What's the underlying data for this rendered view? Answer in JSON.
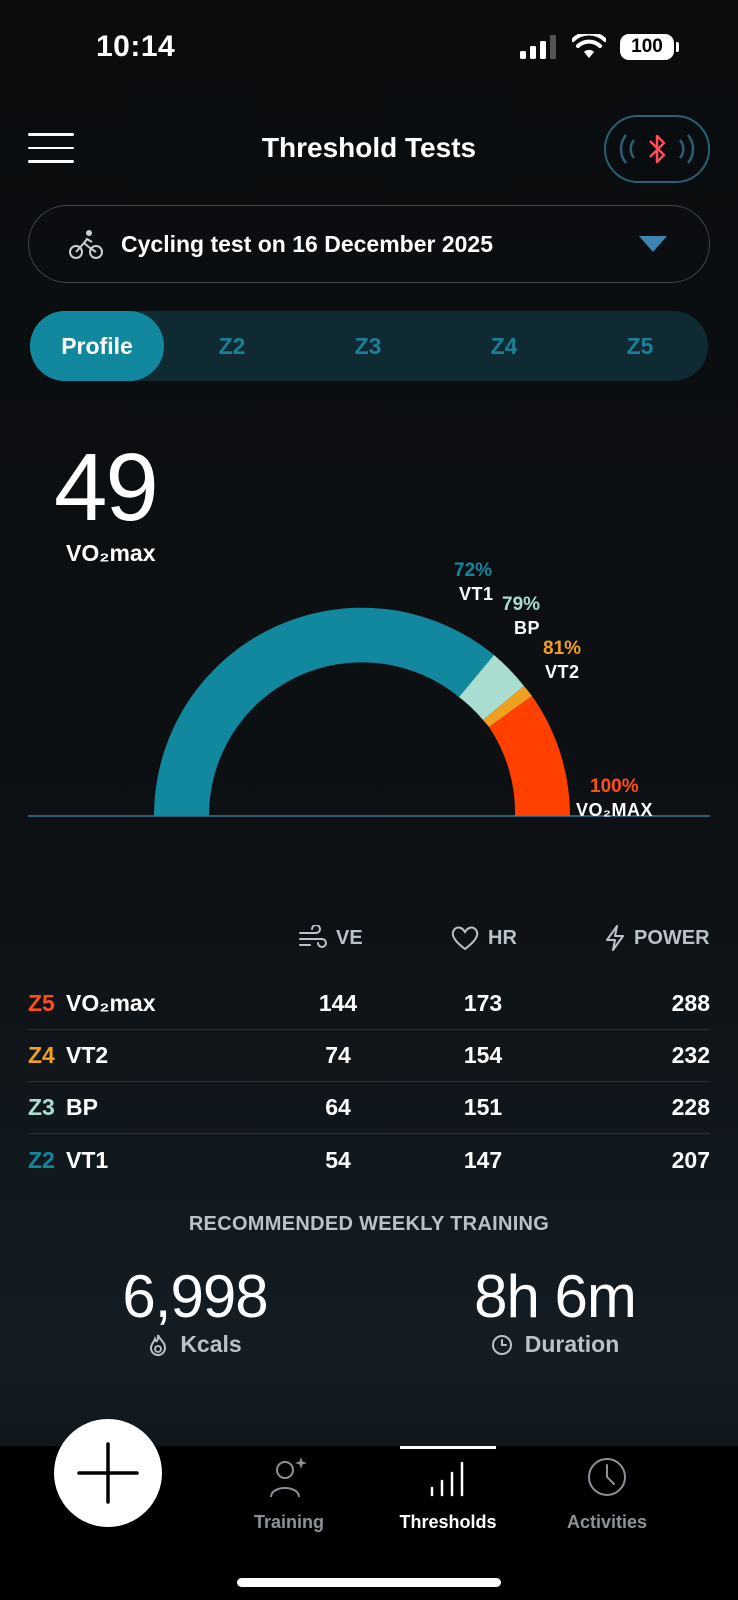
{
  "status": {
    "time": "10:14",
    "battery": "100"
  },
  "header": {
    "title": "Threshold Tests"
  },
  "test_selector": {
    "label": "Cycling test on 16 December 2025"
  },
  "tabs": [
    {
      "label": "Profile",
      "active": true
    },
    {
      "label": "Z2"
    },
    {
      "label": "Z3"
    },
    {
      "label": "Z4"
    },
    {
      "label": "Z5"
    }
  ],
  "vo2max": {
    "value": "49",
    "label": "VO₂max"
  },
  "gauge": {
    "markers": [
      {
        "pct": "72%",
        "name": "VT1",
        "color": "#11889e"
      },
      {
        "pct": "79%",
        "name": "BP",
        "color": "#a8ddd0"
      },
      {
        "pct": "81%",
        "name": "VT2",
        "color": "#f0a020"
      },
      {
        "pct": "100%",
        "name": "VO₂MAX",
        "color": "#ff4d1a"
      }
    ]
  },
  "table": {
    "headers": {
      "ve": "VE",
      "hr": "HR",
      "power": "POWER"
    },
    "rows": [
      {
        "zone": "Z5",
        "zone_color": "#ff4d1a",
        "name": "VO₂max",
        "ve": "144",
        "hr": "173",
        "power": "288"
      },
      {
        "zone": "Z4",
        "zone_color": "#f0a020",
        "name": "VT2",
        "ve": "74",
        "hr": "154",
        "power": "232"
      },
      {
        "zone": "Z3",
        "zone_color": "#a8ddd0",
        "name": "BP",
        "ve": "64",
        "hr": "151",
        "power": "228"
      },
      {
        "zone": "Z2",
        "zone_color": "#11889e",
        "name": "VT1",
        "ve": "54",
        "hr": "147",
        "power": "207"
      }
    ]
  },
  "recommended": {
    "title": "RECOMMENDED WEEKLY TRAINING",
    "kcals_value": "6,998",
    "kcals_label": "Kcals",
    "duration_value": "8h 6m",
    "duration_label": "Duration"
  },
  "nav": {
    "training": "Training",
    "thresholds": "Thresholds",
    "activities": "Activities"
  },
  "colors": {
    "accent": "#11889e",
    "z5": "#ff4d1a",
    "z4": "#f0a020",
    "z3": "#a8ddd0",
    "z2": "#11889e"
  }
}
